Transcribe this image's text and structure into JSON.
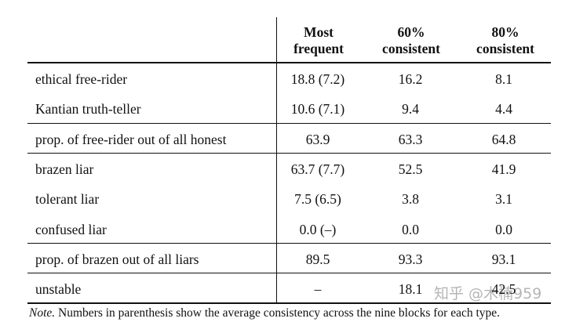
{
  "table": {
    "header": [
      "Most frequent",
      "60% consistent",
      "80% consistent"
    ],
    "rows": [
      [
        "ethical free-rider",
        "18.8 (7.2)",
        "16.2",
        "8.1"
      ],
      [
        "Kantian truth-teller",
        "10.6 (7.1)",
        "9.4",
        "4.4"
      ],
      [
        "prop. of free-rider out of all honest",
        "63.9",
        "63.3",
        "64.8"
      ],
      [
        "brazen liar",
        "63.7 (7.7)",
        "52.5",
        "41.9"
      ],
      [
        "tolerant liar",
        "7.5 (6.5)",
        "3.8",
        "3.1"
      ],
      [
        "confused liar",
        "0.0 (–)",
        "0.0",
        "0.0"
      ],
      [
        "prop. of brazen out of all liars",
        "89.5",
        "93.3",
        "93.1"
      ],
      [
        "unstable",
        "–",
        "18.1",
        "42.5"
      ]
    ]
  },
  "note": {
    "label": "Note.",
    "text": "Numbers in parenthesis show the average consistency across the nine blocks for each type."
  },
  "watermark": "知乎 @木楠959"
}
